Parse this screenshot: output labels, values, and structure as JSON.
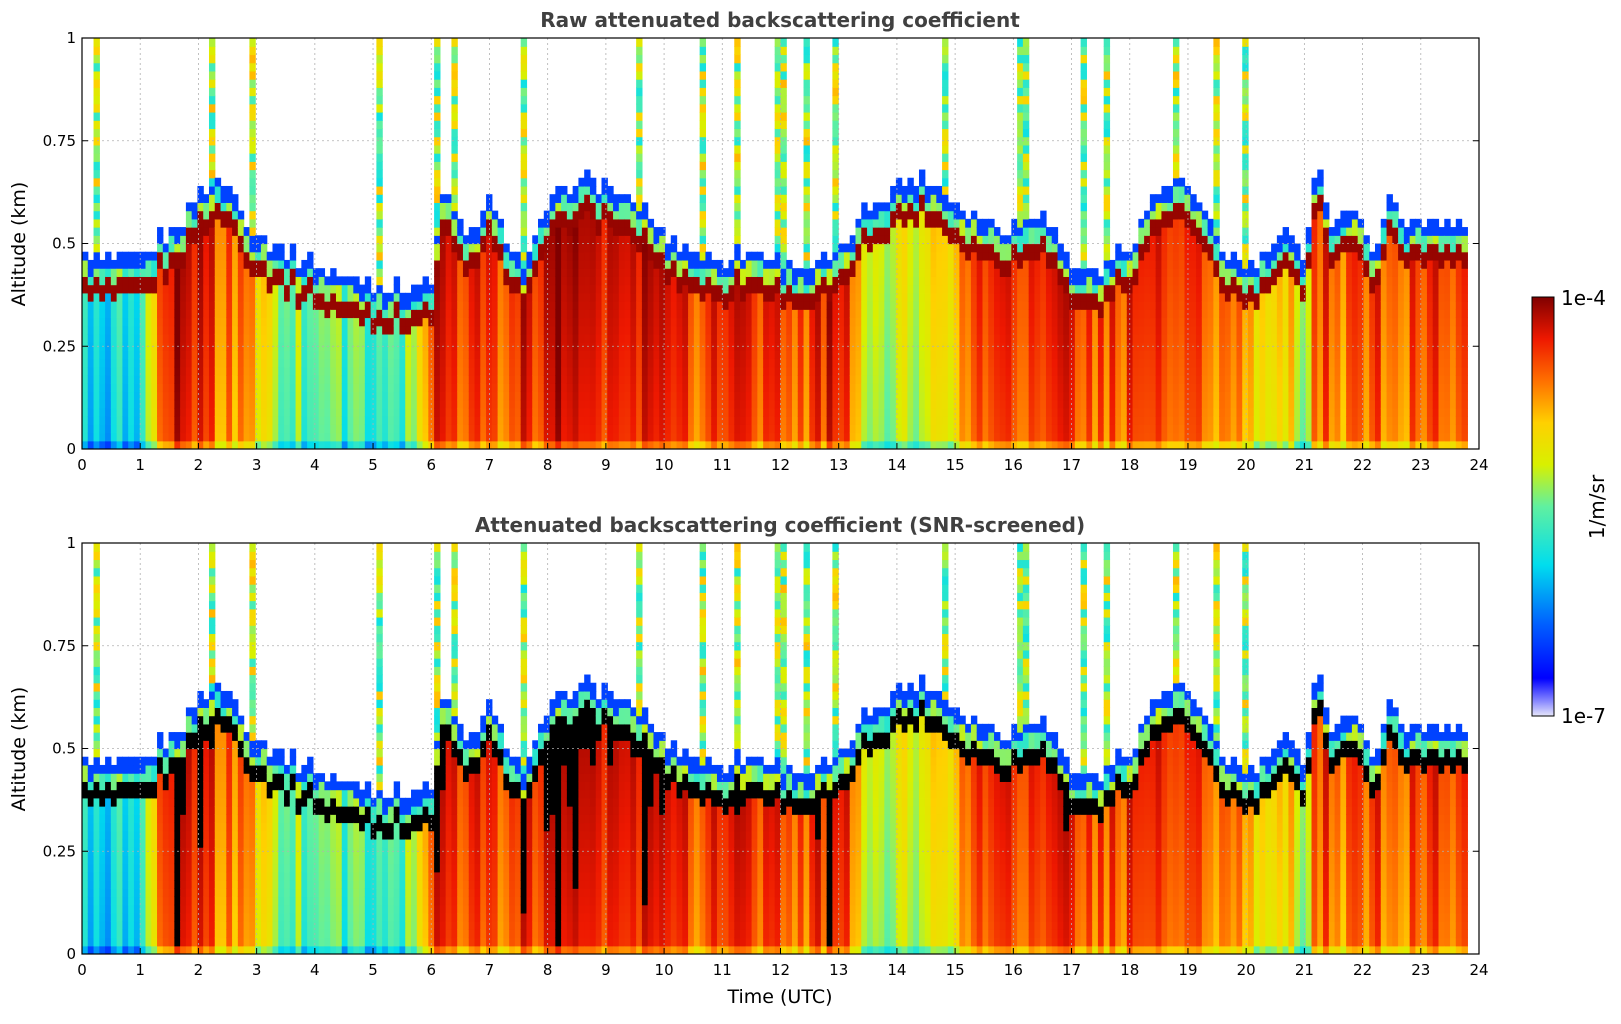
{
  "chart_data": [
    {
      "type": "heatmap",
      "title": "Raw attenuated backscattering coefficient",
      "xlabel": "",
      "ylabel": "Altitude (km)",
      "xlim": [
        0,
        24
      ],
      "ylim": [
        0,
        1
      ],
      "xticks": [
        "0",
        "1",
        "2",
        "3",
        "4",
        "5",
        "6",
        "7",
        "8",
        "9",
        "10",
        "11",
        "12",
        "13",
        "14",
        "15",
        "16",
        "17",
        "18",
        "19",
        "20",
        "21",
        "22",
        "23",
        "24"
      ],
      "yticks": [
        "0",
        "0.25",
        "0.5",
        "0.75",
        "1"
      ],
      "grid": true,
      "data_end_time": 23.8,
      "screened": false
    },
    {
      "type": "heatmap",
      "title": "Attenuated backscattering coefficient (SNR-screened)",
      "xlabel": "Time (UTC)",
      "ylabel": "Altitude (km)",
      "xlim": [
        0,
        24
      ],
      "ylim": [
        0,
        1
      ],
      "xticks": [
        "0",
        "1",
        "2",
        "3",
        "4",
        "5",
        "6",
        "7",
        "8",
        "9",
        "10",
        "11",
        "12",
        "13",
        "14",
        "15",
        "16",
        "17",
        "18",
        "19",
        "20",
        "21",
        "22",
        "23",
        "24"
      ],
      "yticks": [
        "0",
        "0.25",
        "0.5",
        "0.75",
        "1"
      ],
      "grid": true,
      "data_end_time": 23.8,
      "screened": true
    }
  ],
  "colorbar": {
    "label": "1/m/sr",
    "max_label": "1e-4",
    "min_label": "1e-7",
    "scale": "log",
    "colormap": "jet",
    "low_color": "#e6e6fa",
    "high_color": "#800000",
    "screened_saturation_color": "#000000"
  },
  "profile": {
    "comment_free": true,
    "times": [
      0,
      0.5,
      1.0,
      1.3,
      1.6,
      2.0,
      2.3,
      2.6,
      2.9,
      3.5,
      4.5,
      5.5,
      6.0,
      6.2,
      6.6,
      7.0,
      7.6,
      8.0,
      8.5,
      9.0,
      9.6,
      10.0,
      10.5,
      11.0,
      11.5,
      12.0,
      12.5,
      13.0,
      13.5,
      14.0,
      14.5,
      15.0,
      15.5,
      16.0,
      16.5,
      17.0,
      17.5,
      18.0,
      18.3,
      18.6,
      18.9,
      19.2,
      19.6,
      20.0,
      20.4,
      20.7,
      21.0,
      21.2,
      21.5,
      21.8,
      22.2,
      22.5,
      22.8,
      23.2,
      23.5,
      23.8
    ],
    "layer_top_km": [
      0.43,
      0.42,
      0.42,
      0.47,
      0.5,
      0.58,
      0.62,
      0.58,
      0.5,
      0.44,
      0.38,
      0.35,
      0.36,
      0.6,
      0.47,
      0.56,
      0.4,
      0.55,
      0.62,
      0.6,
      0.55,
      0.48,
      0.44,
      0.42,
      0.45,
      0.42,
      0.4,
      0.44,
      0.55,
      0.6,
      0.62,
      0.56,
      0.52,
      0.5,
      0.55,
      0.4,
      0.4,
      0.46,
      0.55,
      0.6,
      0.62,
      0.55,
      0.45,
      0.4,
      0.44,
      0.48,
      0.42,
      0.66,
      0.5,
      0.55,
      0.45,
      0.58,
      0.5,
      0.52,
      0.52,
      0.5
    ],
    "haze_level": [
      0.35,
      0.35,
      0.4,
      0.8,
      0.9,
      0.85,
      0.8,
      0.75,
      0.7,
      0.5,
      0.45,
      0.45,
      0.85,
      0.85,
      0.8,
      0.8,
      0.85,
      0.9,
      0.92,
      0.88,
      0.85,
      0.85,
      0.8,
      0.85,
      0.8,
      0.8,
      0.82,
      0.88,
      0.6,
      0.55,
      0.58,
      0.65,
      0.8,
      0.85,
      0.85,
      0.85,
      0.8,
      0.82,
      0.8,
      0.78,
      0.8,
      0.8,
      0.75,
      0.7,
      0.65,
      0.7,
      0.55,
      0.8,
      0.8,
      0.75,
      0.8,
      0.8,
      0.8,
      0.8,
      0.8,
      0.78
    ]
  }
}
